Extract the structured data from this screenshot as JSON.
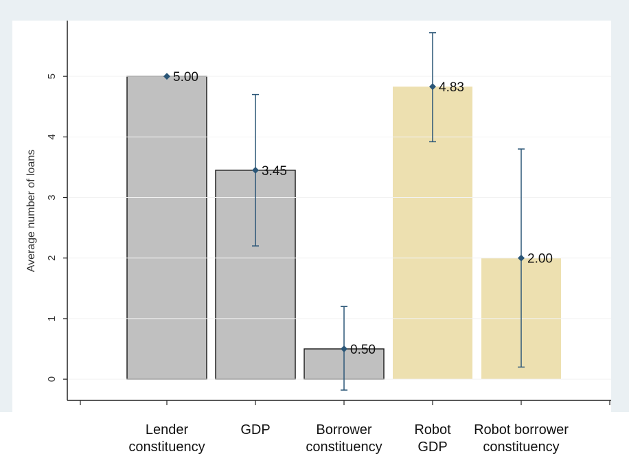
{
  "chart_data": {
    "type": "bar",
    "y_label": "Average number of loans",
    "categories": [
      "Lender\nconstituency",
      "GDP",
      "Borrower\nconstituency",
      "Robot\nGDP",
      "Robot borrower\nconstituency"
    ],
    "series": [
      {
        "values": [
          5.0,
          3.45,
          0.5,
          4.83,
          2.0
        ],
        "value_labels": [
          "5.00",
          "3.45",
          "0.50",
          "4.83",
          "2.00"
        ],
        "ci_low": [
          null,
          2.2,
          -0.18,
          3.92,
          0.2
        ],
        "ci_high": [
          null,
          4.7,
          1.2,
          5.72,
          3.8
        ],
        "colors": [
          "#c0c0c0",
          "#c0c0c0",
          "#c0c0c0",
          "#ede0b0",
          "#ede0b0"
        ],
        "outline": [
          true,
          true,
          true,
          false,
          false
        ]
      }
    ],
    "error_color": "#2b5677",
    "ylim": [
      -0.35,
      5.92
    ],
    "yticks": [
      0,
      1,
      2,
      3,
      4,
      5
    ],
    "grid": true
  }
}
